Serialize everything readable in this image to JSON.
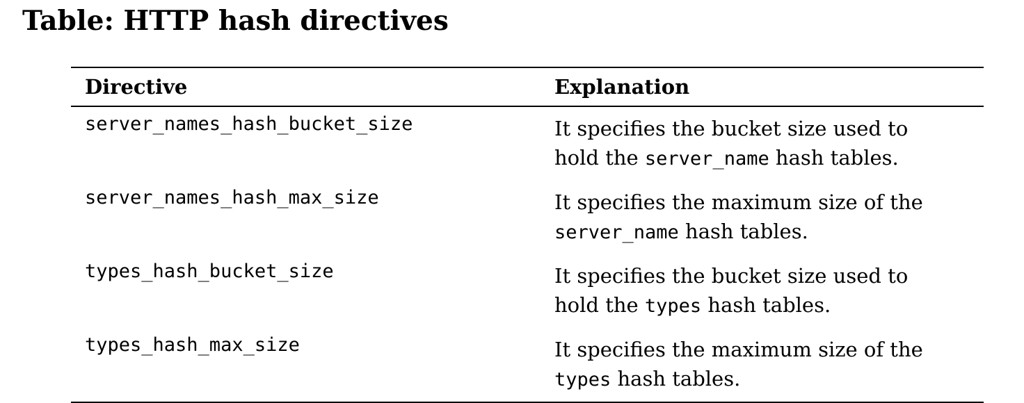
{
  "title": "Table: HTTP hash directives",
  "table": {
    "headers": {
      "directive": "Directive",
      "explanation": "Explanation"
    },
    "rows": [
      {
        "directive": "server_names_hash_bucket_size",
        "explanation": {
          "line1": "It specifies the bucket size used to",
          "line2_before": "hold the ",
          "line2_code": "server_name",
          "line2_after": " hash tables."
        }
      },
      {
        "directive": "server_names_hash_max_size",
        "explanation": {
          "line1": "It specifies the maximum size of the",
          "line2_before": "",
          "line2_code": "server_name",
          "line2_after": " hash tables."
        }
      },
      {
        "directive": "types_hash_bucket_size",
        "explanation": {
          "line1": "It specifies the bucket size used to",
          "line2_before": "hold the ",
          "line2_code": "types",
          "line2_after": " hash tables."
        }
      },
      {
        "directive": "types_hash_max_size",
        "explanation": {
          "line1": "It specifies the maximum size of the",
          "line2_before": "",
          "line2_code": "types",
          "line2_after": " hash tables."
        }
      }
    ]
  }
}
